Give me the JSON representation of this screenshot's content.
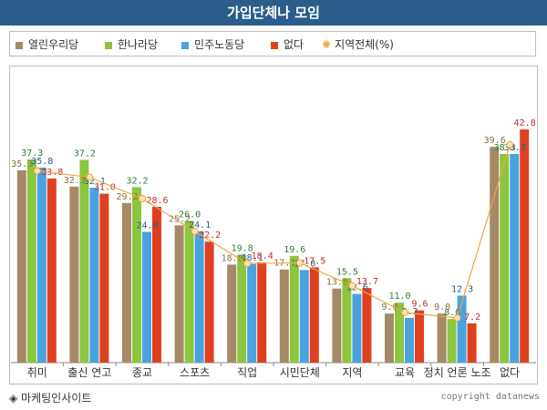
{
  "header": {
    "title": "가입단체나 모임"
  },
  "footer": {
    "brand": "◈ 마케팅인사이트",
    "copyright": "copyright datanews"
  },
  "colors": {
    "yeollin": "#a48a66",
    "hannara": "#8cc63e",
    "minju": "#4aa3df",
    "none": "#e0401f",
    "total": "#f2a541"
  },
  "chart_data": {
    "type": "bar",
    "title": "가입단체나 모임",
    "categories": [
      "취미",
      "출신 연고",
      "종교",
      "스포츠",
      "직업",
      "시민단체",
      "지역",
      "교육",
      "정치 언론 노조",
      "없다"
    ],
    "series": [
      {
        "name": "열린우리당",
        "values": [
          35.3,
          32.3,
          29.3,
          25.2,
          18.0,
          17.1,
          13.6,
          9.0,
          9.0,
          39.6
        ]
      },
      {
        "name": "한나라당",
        "values": [
          37.3,
          37.2,
          32.2,
          26.0,
          19.8,
          19.6,
          15.5,
          11.0,
          8.0,
          38.3
        ]
      },
      {
        "name": "민주노동당",
        "values": [
          35.8,
          32.1,
          24.0,
          24.1,
          18.1,
          17.0,
          12.6,
          8.2,
          12.3,
          38.3
        ]
      },
      {
        "name": "없다",
        "values": [
          33.8,
          31.0,
          28.6,
          22.2,
          18.4,
          17.5,
          13.7,
          9.6,
          7.2,
          42.8
        ]
      }
    ],
    "line_series": {
      "name": "지역전체(%)",
      "values": [
        35.2,
        34.0,
        30.1,
        24.1,
        18.2,
        18.3,
        14.1,
        9.2,
        8.2,
        40.0
      ]
    },
    "ylim": [
      0,
      50
    ],
    "grid": false,
    "legend_position": "top"
  }
}
